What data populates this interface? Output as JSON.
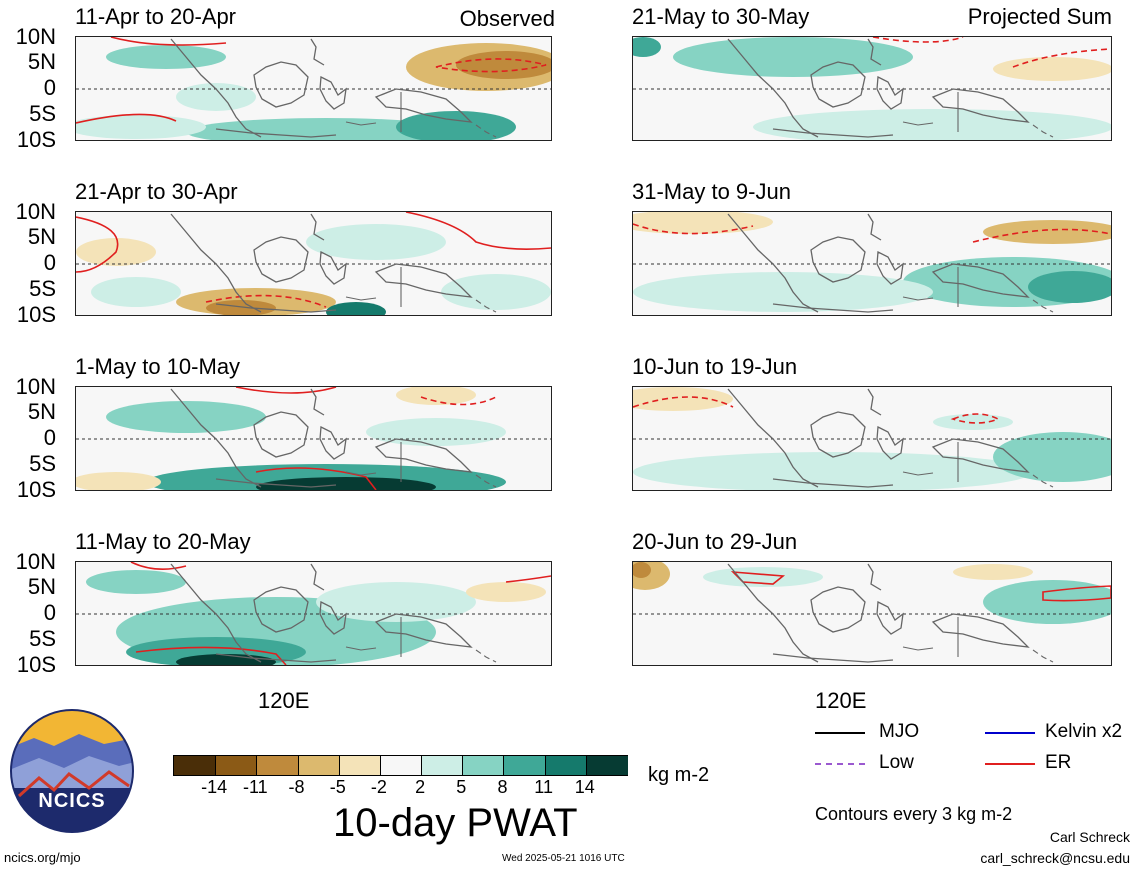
{
  "header": {
    "observed_label": "Observed",
    "projected_label": "Projected Sum"
  },
  "lat_labels": [
    "10N",
    "5N",
    "0",
    "5S",
    "10S"
  ],
  "lon_label": "120E",
  "panels_left": [
    {
      "title": "11-Apr to 20-Apr"
    },
    {
      "title": "21-Apr to 30-Apr"
    },
    {
      "title": "1-May to 10-May"
    },
    {
      "title": "11-May to 20-May"
    }
  ],
  "panels_right": [
    {
      "title": "21-May to 30-May"
    },
    {
      "title": "31-May to 9-Jun"
    },
    {
      "title": "10-Jun to 19-Jun"
    },
    {
      "title": "20-Jun to 29-Jun"
    }
  ],
  "colorbar": {
    "ticks": [
      "-14",
      "-11",
      "-8",
      "-5",
      "-2",
      "2",
      "5",
      "8",
      "11",
      "14"
    ],
    "colors": [
      "#4a2e08",
      "#8b5a16",
      "#bf8a3c",
      "#dcb96e",
      "#f4e3b8",
      "#f7f7f7",
      "#cdeee6",
      "#86d3c3",
      "#3fa897",
      "#157a6c",
      "#063b33"
    ],
    "unit": "kg m-2",
    "title": "10-day PWAT"
  },
  "legend": {
    "items": [
      {
        "label": "MJO",
        "color": "#000000"
      },
      {
        "label": "Kelvin x2",
        "color": "#0000cc"
      },
      {
        "label": "Low",
        "color": "#9b59d0"
      },
      {
        "label": "ER",
        "color": "#e01f1f"
      }
    ],
    "contours_note": "Contours every 3 kg m-2"
  },
  "logo": {
    "text": "NCICS"
  },
  "footer": {
    "site": "ncics.org/mjo",
    "timestamp": "Wed 2025-05-21 1016 UTC",
    "author": "Carl Schreck",
    "email": "carl_schreck@ncsu.edu"
  }
}
